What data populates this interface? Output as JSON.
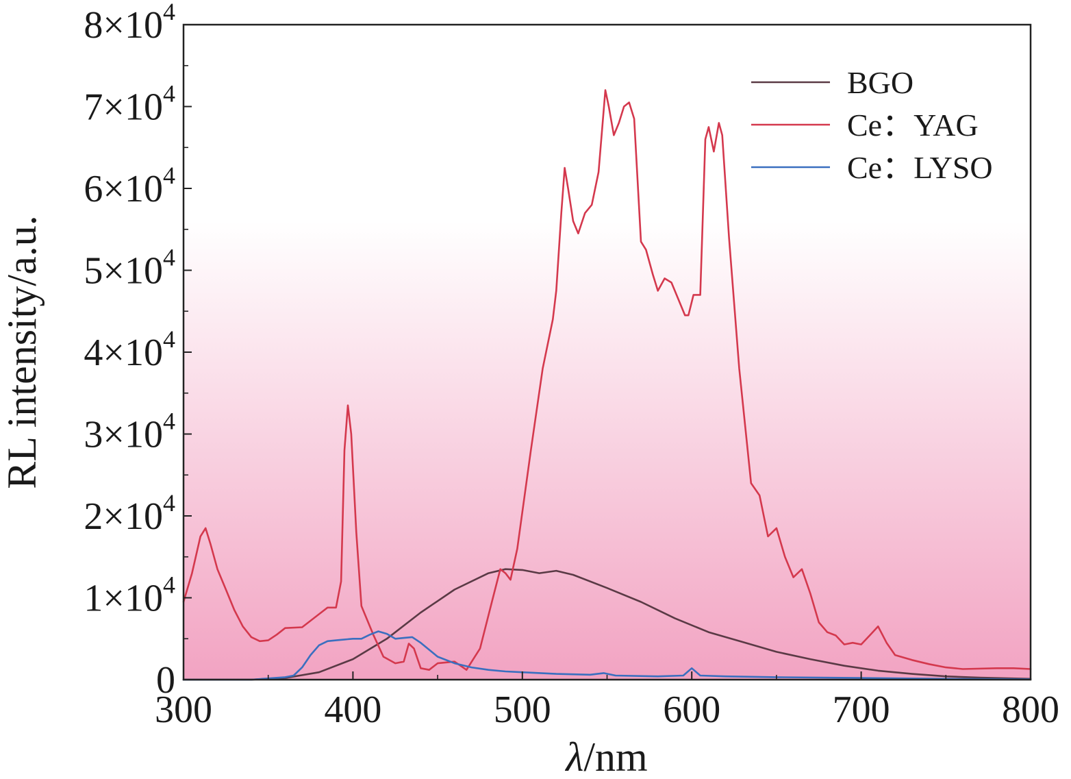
{
  "chart_data": {
    "type": "line",
    "title": "",
    "xlabel_symbol": "λ",
    "xlabel_unit": "/nm",
    "ylabel": "RL intensity/a.u.",
    "xlim": [
      300,
      800
    ],
    "ylim": [
      0,
      80000
    ],
    "x_ticks": [
      {
        "value": 300,
        "label": "300"
      },
      {
        "value": 400,
        "label": "400"
      },
      {
        "value": 500,
        "label": "500"
      },
      {
        "value": 600,
        "label": "600"
      },
      {
        "value": 700,
        "label": "700"
      },
      {
        "value": 800,
        "label": "800"
      }
    ],
    "y_ticks": [
      {
        "value": 0,
        "mantissa": "0",
        "exponent": ""
      },
      {
        "value": 10000,
        "mantissa": "1×10",
        "exponent": "4"
      },
      {
        "value": 20000,
        "mantissa": "2×10",
        "exponent": "4"
      },
      {
        "value": 30000,
        "mantissa": "3×10",
        "exponent": "4"
      },
      {
        "value": 40000,
        "mantissa": "4×10",
        "exponent": "4"
      },
      {
        "value": 50000,
        "mantissa": "5×10",
        "exponent": "4"
      },
      {
        "value": 60000,
        "mantissa": "6×10",
        "exponent": "4"
      },
      {
        "value": 70000,
        "mantissa": "7×10",
        "exponent": "4"
      },
      {
        "value": 80000,
        "mantissa": "8×10",
        "exponent": "4"
      }
    ],
    "legend_position": "top-right",
    "background_gradient": {
      "top": "#ffffff",
      "bottom": "#f2a3c2"
    },
    "series": [
      {
        "name": "BGO",
        "color": "#5a3a45",
        "points": [
          [
            300,
            0
          ],
          [
            340,
            0
          ],
          [
            360,
            200
          ],
          [
            380,
            900
          ],
          [
            400,
            2500
          ],
          [
            420,
            5000
          ],
          [
            440,
            8200
          ],
          [
            460,
            11000
          ],
          [
            480,
            13000
          ],
          [
            490,
            13500
          ],
          [
            500,
            13400
          ],
          [
            510,
            13000
          ],
          [
            520,
            13300
          ],
          [
            530,
            12800
          ],
          [
            550,
            11200
          ],
          [
            570,
            9500
          ],
          [
            590,
            7500
          ],
          [
            610,
            5800
          ],
          [
            630,
            4600
          ],
          [
            650,
            3400
          ],
          [
            670,
            2500
          ],
          [
            690,
            1700
          ],
          [
            710,
            1100
          ],
          [
            730,
            700
          ],
          [
            750,
            400
          ],
          [
            770,
            250
          ],
          [
            800,
            100
          ]
        ]
      },
      {
        "name": "Ce：YAG",
        "color": "#d4384d",
        "points": [
          [
            300,
            9500
          ],
          [
            305,
            13000
          ],
          [
            310,
            17500
          ],
          [
            313,
            18500
          ],
          [
            316,
            16500
          ],
          [
            320,
            13500
          ],
          [
            325,
            11000
          ],
          [
            330,
            8500
          ],
          [
            335,
            6500
          ],
          [
            340,
            5200
          ],
          [
            345,
            4700
          ],
          [
            350,
            4800
          ],
          [
            355,
            5500
          ],
          [
            360,
            6300
          ],
          [
            370,
            6400
          ],
          [
            380,
            8000
          ],
          [
            385,
            8800
          ],
          [
            390,
            8800
          ],
          [
            393,
            12000
          ],
          [
            395,
            28000
          ],
          [
            397,
            33500
          ],
          [
            399,
            30000
          ],
          [
            402,
            18000
          ],
          [
            405,
            9000
          ],
          [
            408,
            7500
          ],
          [
            412,
            5500
          ],
          [
            418,
            2800
          ],
          [
            425,
            2000
          ],
          [
            430,
            2200
          ],
          [
            433,
            4400
          ],
          [
            436,
            3800
          ],
          [
            440,
            1400
          ],
          [
            445,
            1200
          ],
          [
            450,
            2000
          ],
          [
            460,
            2200
          ],
          [
            467,
            1200
          ],
          [
            475,
            3800
          ],
          [
            482,
            9500
          ],
          [
            487,
            13500
          ],
          [
            490,
            13000
          ],
          [
            493,
            12200
          ],
          [
            497,
            16000
          ],
          [
            505,
            28000
          ],
          [
            512,
            38000
          ],
          [
            518,
            44000
          ],
          [
            520,
            47500
          ],
          [
            523,
            57000
          ],
          [
            525,
            62500
          ],
          [
            527,
            60000
          ],
          [
            530,
            56000
          ],
          [
            533,
            54500
          ],
          [
            537,
            57000
          ],
          [
            541,
            58000
          ],
          [
            545,
            62000
          ],
          [
            549,
            72000
          ],
          [
            551,
            70000
          ],
          [
            554,
            66500
          ],
          [
            557,
            68000
          ],
          [
            560,
            70000
          ],
          [
            563,
            70500
          ],
          [
            566,
            68500
          ],
          [
            570,
            53500
          ],
          [
            573,
            52500
          ],
          [
            577,
            49500
          ],
          [
            580,
            47500
          ],
          [
            584,
            49000
          ],
          [
            588,
            48500
          ],
          [
            592,
            46500
          ],
          [
            596,
            44500
          ],
          [
            598,
            44500
          ],
          [
            601,
            47000
          ],
          [
            605,
            47000
          ],
          [
            608,
            66000
          ],
          [
            610,
            67500
          ],
          [
            613,
            64500
          ],
          [
            616,
            68000
          ],
          [
            618,
            66500
          ],
          [
            622,
            54000
          ],
          [
            628,
            38000
          ],
          [
            635,
            24000
          ],
          [
            640,
            22500
          ],
          [
            645,
            17500
          ],
          [
            650,
            18500
          ],
          [
            655,
            15000
          ],
          [
            660,
            12500
          ],
          [
            665,
            13500
          ],
          [
            670,
            10500
          ],
          [
            675,
            7000
          ],
          [
            680,
            5800
          ],
          [
            685,
            5400
          ],
          [
            690,
            4300
          ],
          [
            695,
            4500
          ],
          [
            700,
            4300
          ],
          [
            705,
            5400
          ],
          [
            710,
            6500
          ],
          [
            715,
            4500
          ],
          [
            720,
            3000
          ],
          [
            730,
            2400
          ],
          [
            740,
            1900
          ],
          [
            750,
            1500
          ],
          [
            760,
            1300
          ],
          [
            780,
            1400
          ],
          [
            790,
            1400
          ],
          [
            800,
            1300
          ]
        ]
      },
      {
        "name": "Ce：LYSO",
        "color": "#3a6fbf",
        "points": [
          [
            300,
            0
          ],
          [
            340,
            0
          ],
          [
            360,
            300
          ],
          [
            365,
            500
          ],
          [
            370,
            1500
          ],
          [
            375,
            3000
          ],
          [
            380,
            4200
          ],
          [
            385,
            4700
          ],
          [
            390,
            4800
          ],
          [
            395,
            4900
          ],
          [
            400,
            5000
          ],
          [
            405,
            5000
          ],
          [
            410,
            5500
          ],
          [
            415,
            5900
          ],
          [
            420,
            5600
          ],
          [
            425,
            5000
          ],
          [
            430,
            5100
          ],
          [
            435,
            5200
          ],
          [
            440,
            4500
          ],
          [
            450,
            2800
          ],
          [
            460,
            2000
          ],
          [
            470,
            1500
          ],
          [
            480,
            1200
          ],
          [
            490,
            1000
          ],
          [
            500,
            900
          ],
          [
            520,
            700
          ],
          [
            540,
            600
          ],
          [
            548,
            800
          ],
          [
            555,
            500
          ],
          [
            580,
            400
          ],
          [
            595,
            500
          ],
          [
            600,
            1400
          ],
          [
            605,
            500
          ],
          [
            620,
            400
          ],
          [
            650,
            300
          ],
          [
            700,
            200
          ],
          [
            750,
            100
          ],
          [
            800,
            50
          ]
        ]
      }
    ]
  }
}
